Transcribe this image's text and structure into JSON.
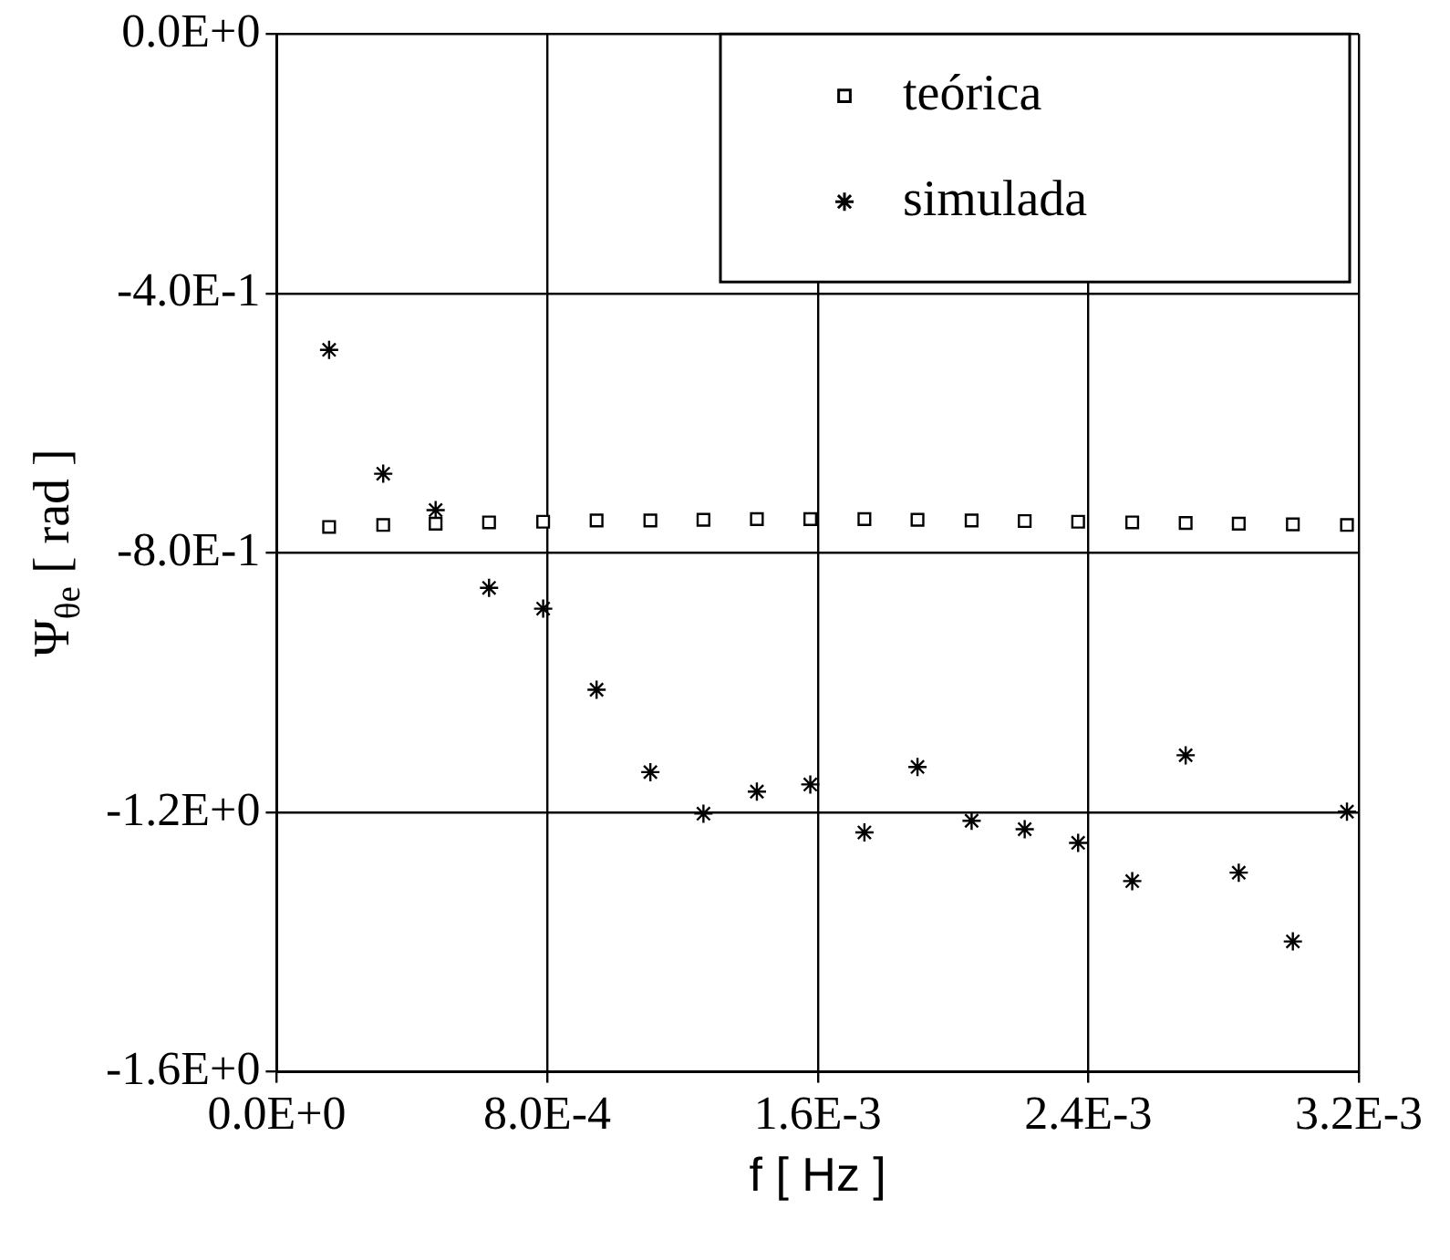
{
  "chart_data": {
    "type": "scatter",
    "xlabel": "f [ Hz ]",
    "ylabel": "Ψ$_{θe}$ [ rad ]",
    "xlim": [
      0,
      0.0032
    ],
    "ylim": [
      -1.6,
      0
    ],
    "xticks": [
      {
        "value": 0,
        "label": "0.0E+0"
      },
      {
        "value": 0.0008,
        "label": "8.0E-4"
      },
      {
        "value": 0.0016,
        "label": "1.6E-3"
      },
      {
        "value": 0.0024,
        "label": "2.4E-3"
      },
      {
        "value": 0.0032,
        "label": "3.2E-3"
      }
    ],
    "yticks": [
      {
        "value": 0,
        "label": "0.0E+0"
      },
      {
        "value": -0.4,
        "label": "-4.0E-1"
      },
      {
        "value": -0.8,
        "label": "-8.0E-1"
      },
      {
        "value": -1.2,
        "label": "-1.2E+0"
      },
      {
        "value": -1.6,
        "label": "-1.6E+0"
      }
    ],
    "grid": true,
    "legend": "top right",
    "x": [
      0.000155,
      0.000315,
      0.00047,
      0.000628,
      0.000788,
      0.000946,
      0.001105,
      0.001262,
      0.00142,
      0.001578,
      0.001738,
      0.001895,
      0.002055,
      0.002212,
      0.00237,
      0.00253,
      0.002688,
      0.002845,
      0.003005,
      0.003165
    ],
    "series": [
      {
        "name": "teórica",
        "color": "#000000",
        "marker": "square",
        "values": [
          -0.76,
          -0.757,
          -0.755,
          -0.753,
          -0.752,
          -0.75,
          -0.75,
          -0.749,
          -0.748,
          -0.748,
          -0.748,
          -0.749,
          -0.75,
          -0.751,
          -0.752,
          -0.753,
          -0.754,
          -0.755,
          -0.756,
          -0.757
        ]
      },
      {
        "name": "simulada",
        "color": "#000000",
        "marker": "cross",
        "values": [
          -0.487,
          -0.678,
          -0.734,
          -0.854,
          -0.886,
          -1.011,
          -1.138,
          -1.202,
          -1.168,
          -1.157,
          -1.231,
          -1.13,
          -1.213,
          -1.226,
          -1.247,
          -1.306,
          -1.112,
          -1.293,
          -1.399,
          -1.199
        ]
      }
    ]
  }
}
